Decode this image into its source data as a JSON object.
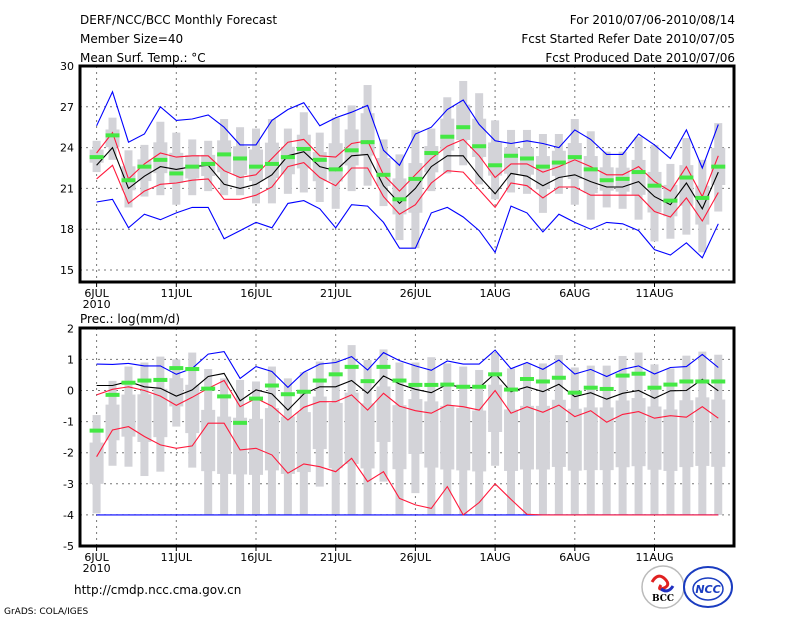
{
  "header": {
    "title": "DERF/NCC/BCC Monthly Forecast",
    "member_size": "Member Size=40",
    "variable": "Mean Surf. Temp.: °C",
    "period": "For 2010/07/06-2010/08/14",
    "start_date": "Fcst Started Refer Date 2010/07/05",
    "produced_date": "Fcst Produced Date 2010/07/06"
  },
  "footer": {
    "url": "http://cmdp.ncc.cma.gov.cn",
    "grads": "GrADS: COLA/IGES",
    "logo_bcc": "BCC",
    "logo_ncc": "NCC"
  },
  "colors": {
    "mean": "#000000",
    "std": "#ff1a3c",
    "extreme": "#0000ff",
    "green": "#44e844",
    "box": "#d3d3d8"
  },
  "chart_data": [
    {
      "type": "line",
      "title": "Mean Surf. Temp.: °C",
      "xlabel": "",
      "ylabel": "",
      "x_tick_labels": [
        "6JUL",
        "11JUL",
        "16JUL",
        "21JUL",
        "26JUL",
        "1AUG",
        "6AUG",
        "11AUG"
      ],
      "x_year_label": "2010",
      "y_ticks": [
        15,
        18,
        21,
        24,
        27,
        30
      ],
      "ylim": [
        15,
        30
      ],
      "grid": true,
      "days": 40,
      "series": [
        {
          "name": "ensemble-mean",
          "values": [
            22.7,
            24.0,
            21.0,
            21.9,
            22.6,
            22.4,
            22.6,
            22.7,
            21.3,
            21.0,
            21.3,
            22.0,
            23.4,
            23.7,
            22.6,
            22.3,
            23.4,
            23.5,
            21.2,
            19.9,
            21.0,
            22.6,
            23.4,
            23.4,
            21.9,
            20.6,
            22.1,
            21.9,
            21.2,
            21.8,
            22.0,
            21.5,
            21.1,
            21.1,
            21.5,
            20.4,
            19.8,
            21.4,
            19.5,
            22.2
          ]
        },
        {
          "name": "upper-red",
          "values": [
            23.6,
            25.1,
            21.7,
            22.8,
            23.6,
            23.3,
            23.4,
            23.4,
            22.3,
            21.8,
            22.0,
            23.2,
            24.4,
            24.6,
            23.4,
            23.3,
            24.3,
            24.5,
            22.0,
            20.8,
            22.0,
            23.2,
            24.1,
            24.6,
            23.4,
            21.8,
            22.8,
            22.8,
            22.2,
            22.6,
            23.1,
            22.6,
            22.0,
            22.0,
            22.6,
            21.5,
            20.8,
            22.6,
            20.4,
            23.4
          ]
        },
        {
          "name": "lower-red",
          "values": [
            21.7,
            22.7,
            19.9,
            20.8,
            21.3,
            21.4,
            21.6,
            21.7,
            20.2,
            20.2,
            20.5,
            21.1,
            22.6,
            22.9,
            21.8,
            21.2,
            22.5,
            22.5,
            20.4,
            19.1,
            19.8,
            21.4,
            22.3,
            22.2,
            20.9,
            19.6,
            21.4,
            21.2,
            20.3,
            21.1,
            21.1,
            20.5,
            20.5,
            20.5,
            20.5,
            19.3,
            18.9,
            20.3,
            18.6,
            20.7
          ]
        },
        {
          "name": "upper-blue",
          "values": [
            25.6,
            28.1,
            24.4,
            25.0,
            27.0,
            26.0,
            26.1,
            26.4,
            25.5,
            24.2,
            24.2,
            26.0,
            26.8,
            27.3,
            25.6,
            26.2,
            26.6,
            27.1,
            23.8,
            22.7,
            25.0,
            25.5,
            26.8,
            27.5,
            25.7,
            24.5,
            24.3,
            24.5,
            24.3,
            24.0,
            25.3,
            24.6,
            23.5,
            23.5,
            25.0,
            24.2,
            23.2,
            25.3,
            22.5,
            25.7
          ]
        },
        {
          "name": "lower-blue",
          "values": [
            20.0,
            20.2,
            18.1,
            19.1,
            18.7,
            19.2,
            19.6,
            19.6,
            17.3,
            17.9,
            18.5,
            18.1,
            19.9,
            20.1,
            19.5,
            18.1,
            19.8,
            19.7,
            18.5,
            16.6,
            16.6,
            19.2,
            19.6,
            18.9,
            17.9,
            16.3,
            19.7,
            19.2,
            17.8,
            19.1,
            18.5,
            18.0,
            18.5,
            18.4,
            17.9,
            16.5,
            16.1,
            17.0,
            15.9,
            18.4
          ]
        },
        {
          "name": "green-marker",
          "values": [
            23.3,
            24.9,
            21.6,
            22.6,
            23.1,
            22.1,
            22.6,
            22.8,
            23.5,
            23.2,
            22.6,
            22.8,
            23.3,
            23.9,
            23.1,
            22.4,
            23.8,
            24.4,
            22.0,
            20.2,
            21.7,
            23.6,
            24.8,
            25.5,
            24.1,
            22.7,
            23.4,
            23.2,
            22.6,
            22.9,
            23.3,
            22.4,
            21.6,
            21.7,
            22.2,
            21.2,
            20.1,
            21.8,
            20.3,
            22.6
          ]
        },
        {
          "name": "range-high",
          "values": [
            24.5,
            26.2,
            23.8,
            24.2,
            25.9,
            25.1,
            24.6,
            24.5,
            26.1,
            25.5,
            25.4,
            26.1,
            25.4,
            26.6,
            25.1,
            26.2,
            27.1,
            28.6,
            24.6,
            23.5,
            25.3,
            25.4,
            27.7,
            28.9,
            28.0,
            26.0,
            25.3,
            25.3,
            25.0,
            25.0,
            26.1,
            25.2,
            23.7,
            23.7,
            24.8,
            24.2,
            22.8,
            24.7,
            23.1,
            25.8
          ]
        },
        {
          "name": "range-low",
          "values": [
            22.2,
            23.1,
            19.6,
            20.4,
            20.5,
            19.8,
            20.5,
            20.8,
            20.5,
            20.5,
            19.9,
            19.9,
            20.6,
            20.7,
            20.0,
            19.5,
            20.8,
            21.2,
            19.7,
            17.2,
            16.6,
            20.8,
            22.1,
            22.7,
            21.3,
            20.2,
            20.7,
            20.6,
            19.2,
            20.6,
            19.8,
            18.7,
            19.6,
            19.5,
            18.7,
            17.1,
            17.3,
            17.6,
            16.3,
            19.3
          ]
        }
      ]
    },
    {
      "type": "line",
      "title": "Prec.: log(mm/d)",
      "xlabel": "",
      "ylabel": "",
      "x_tick_labels": [
        "6JUL",
        "11JUL",
        "16JUL",
        "21JUL",
        "26JUL",
        "1AUG",
        "6AUG",
        "11AUG"
      ],
      "x_year_label": "2010",
      "y_ticks": [
        -5,
        -4,
        -3,
        -2,
        -1,
        0,
        1,
        2
      ],
      "ylim": [
        -5,
        2
      ],
      "grid": true,
      "days": 40,
      "series": [
        {
          "name": "ensemble-mean",
          "values": [
            0.16,
            0.16,
            0.29,
            0.12,
            0.07,
            -0.18,
            0.02,
            0.45,
            0.55,
            -0.33,
            0.02,
            -0.11,
            -0.63,
            -0.11,
            0.12,
            0.12,
            0.32,
            -0.09,
            0.47,
            0.21,
            0.04,
            -0.07,
            0.2,
            0.09,
            0.09,
            0.55,
            -0.04,
            0.12,
            -0.04,
            0.2,
            -0.2,
            -0.07,
            -0.28,
            -0.09,
            0.0,
            -0.25,
            -0.01,
            0.0,
            0.36,
            -0.01
          ]
        },
        {
          "name": "upper-red",
          "values": [
            -0.14,
            0.04,
            0.12,
            0.0,
            -0.18,
            -0.48,
            -0.22,
            0.07,
            0.32,
            -0.52,
            -0.25,
            -0.5,
            -0.95,
            -0.54,
            -0.36,
            -0.36,
            -0.14,
            -0.63,
            -0.09,
            -0.5,
            -0.65,
            -0.73,
            -0.47,
            -0.52,
            -0.63,
            0.0,
            -0.73,
            -0.52,
            -0.7,
            -0.47,
            -0.84,
            -0.65,
            -1.02,
            -0.77,
            -0.68,
            -0.89,
            -0.81,
            -0.86,
            -0.52,
            -0.89
          ]
        },
        {
          "name": "lower-red",
          "values": [
            -2.13,
            -1.27,
            -1.16,
            -1.48,
            -1.75,
            -1.86,
            -1.78,
            -1.05,
            -1.05,
            -1.91,
            -1.86,
            -2.07,
            -2.66,
            -2.36,
            -2.45,
            -2.61,
            -2.18,
            -2.93,
            -2.61,
            -3.47,
            -3.68,
            -3.79,
            -3.09,
            -4.0,
            -3.6,
            -3.0,
            -3.5,
            -3.98,
            -4.0,
            -4.0,
            -4.0,
            -4.0,
            -4.0,
            -4.0,
            -4.0,
            -4.0,
            -4.0,
            -4.0,
            -4.0,
            -4.0
          ]
        },
        {
          "name": "upper-blue",
          "values": [
            0.85,
            0.84,
            0.87,
            0.79,
            0.79,
            0.52,
            0.71,
            1.17,
            1.25,
            0.39,
            0.77,
            0.61,
            0.1,
            0.59,
            0.85,
            0.9,
            1.09,
            0.66,
            1.22,
            0.96,
            0.79,
            0.65,
            0.95,
            0.85,
            0.85,
            1.3,
            0.7,
            0.9,
            0.68,
            0.98,
            0.53,
            0.68,
            0.45,
            0.68,
            0.79,
            0.53,
            0.74,
            0.77,
            1.16,
            0.74
          ]
        },
        {
          "name": "lower-blue",
          "values": [
            -4,
            -4,
            -4,
            -4,
            -4,
            -4,
            -4,
            -4,
            -4,
            -4,
            -4,
            -4,
            -4,
            -4,
            -4,
            -4,
            -4,
            -4,
            -4,
            -4,
            -4,
            -4,
            -4,
            -4,
            -4,
            -4,
            -4,
            -4,
            -4,
            -4,
            -4,
            -4,
            -4,
            -4,
            -4,
            -4,
            -4,
            -4,
            -4,
            -4
          ]
        },
        {
          "name": "green-marker",
          "values": [
            -1.29,
            -0.14,
            0.25,
            0.32,
            0.34,
            0.72,
            0.69,
            0.06,
            -0.19,
            -1.04,
            -0.26,
            0.16,
            -0.12,
            -0.04,
            0.32,
            0.52,
            0.76,
            0.3,
            0.76,
            0.32,
            0.18,
            0.18,
            0.19,
            0.12,
            0.12,
            0.52,
            0.03,
            0.37,
            0.29,
            0.41,
            -0.07,
            0.09,
            0.05,
            0.48,
            0.54,
            0.09,
            0.19,
            0.29,
            0.29,
            0.29
          ]
        },
        {
          "name": "range-high",
          "values": [
            -0.79,
            0.31,
            0.77,
            0.9,
            1.09,
            1.0,
            1.22,
            0.69,
            0.39,
            0.34,
            0.29,
            0.77,
            0.39,
            0.59,
            0.93,
            1.0,
            1.46,
            0.98,
            1.32,
            0.9,
            0.9,
            1.07,
            0.87,
            0.77,
            0.66,
            1.2,
            0.71,
            0.87,
            0.87,
            1.14,
            0.74,
            0.8,
            0.8,
            1.11,
            1.22,
            0.84,
            0.71,
            1.12,
            1.25,
            1.15
          ]
        },
        {
          "name": "range-low",
          "values": [
            -3.95,
            -2.42,
            -2.45,
            -2.75,
            -2.61,
            -1.16,
            -2.48,
            -4,
            -4,
            -4,
            -4,
            -4,
            -4,
            -4,
            -3.09,
            -4,
            -4,
            -4,
            -2.93,
            -4,
            -3.3,
            -4,
            -4,
            -4,
            -4,
            -2.42,
            -4,
            -4,
            -4,
            -4,
            -4,
            -4,
            -4,
            -4,
            -4,
            -4,
            -4,
            -4,
            -4,
            -4
          ]
        }
      ]
    }
  ]
}
